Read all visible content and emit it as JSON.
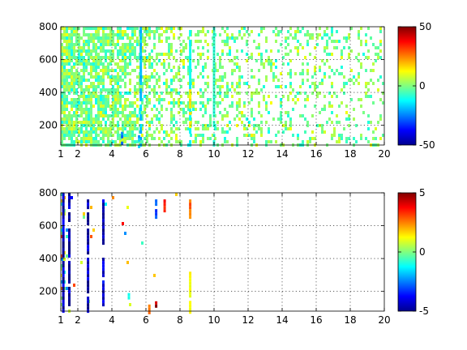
{
  "chart_data": [
    {
      "type": "heatmap",
      "title": "",
      "xlabel": "",
      "ylabel": "",
      "xlim": [
        1,
        20
      ],
      "ylim": [
        80,
        800
      ],
      "x_ticks": [
        1,
        2,
        4,
        6,
        8,
        10,
        12,
        14,
        16,
        18,
        20
      ],
      "x_tick_labels": [
        "1",
        "2",
        "4",
        "6",
        "8",
        "10",
        "12",
        "14",
        "16",
        "18",
        "20"
      ],
      "y_ticks": [
        200,
        400,
        600,
        800
      ],
      "y_tick_labels": [
        "200",
        "400",
        "600",
        "800"
      ],
      "grid": true,
      "colormap": "jet",
      "colorbar": {
        "range": [
          -50,
          50
        ],
        "ticks": [
          -50,
          0,
          50
        ],
        "tick_labels": [
          "-50",
          "0",
          "50"
        ]
      },
      "density_profile": [
        [
          1,
          0.88
        ],
        [
          2,
          0.8
        ],
        [
          3,
          0.82
        ],
        [
          4,
          0.7
        ],
        [
          5,
          0.65
        ],
        [
          6,
          0.5
        ],
        [
          7,
          0.4
        ],
        [
          8,
          0.35
        ],
        [
          10,
          0.32
        ],
        [
          12,
          0.28
        ],
        [
          14,
          0.25
        ],
        [
          16,
          0.22
        ],
        [
          18,
          0.2
        ],
        [
          20,
          0.18
        ]
      ],
      "value_spread": 14,
      "columns": [
        {
          "x": 5.7,
          "y": [
            80,
            800
          ],
          "value": -18
        },
        {
          "x": 8.6,
          "y": [
            80,
            800
          ],
          "value": -12
        },
        {
          "x": 8.6,
          "y": [
            200,
            420
          ],
          "value": 14
        },
        {
          "x": 10.0,
          "y": [
            80,
            800
          ],
          "value": -8
        },
        {
          "x": 4.6,
          "y": [
            100,
            160
          ],
          "value": -25
        },
        {
          "x": 5.6,
          "y": [
            80,
            140
          ],
          "value": -20
        }
      ]
    },
    {
      "type": "heatmap",
      "title": "",
      "xlabel": "",
      "ylabel": "",
      "xlim": [
        1,
        20
      ],
      "ylim": [
        80,
        800
      ],
      "x_ticks": [
        1,
        2,
        4,
        6,
        8,
        10,
        12,
        14,
        16,
        18,
        20
      ],
      "x_tick_labels": [
        "1",
        "2",
        "4",
        "6",
        "8",
        "10",
        "12",
        "14",
        "16",
        "18",
        "20"
      ],
      "y_ticks": [
        200,
        400,
        600,
        800
      ],
      "y_tick_labels": [
        "200",
        "400",
        "600",
        "800"
      ],
      "grid": true,
      "colormap": "jet",
      "colorbar": {
        "range": [
          -5,
          5
        ],
        "ticks": [
          -5,
          0,
          5
        ],
        "tick_labels": [
          "-5",
          "0",
          "5"
        ]
      },
      "density_profile": [
        [
          1,
          0.35
        ],
        [
          1.5,
          0.06
        ],
        [
          2,
          0.02
        ],
        [
          3,
          0.02
        ],
        [
          4,
          0.015
        ],
        [
          6,
          0.01
        ],
        [
          8,
          0.005
        ],
        [
          12,
          0.0
        ],
        [
          20,
          0.0
        ]
      ],
      "value_spread": 4.5,
      "columns": [
        {
          "x": 1.15,
          "y": [
            80,
            800
          ],
          "value": -4.5
        },
        {
          "x": 1.5,
          "y": [
            120,
            800
          ],
          "value": -4.8
        },
        {
          "x": 2.6,
          "y": [
            80,
            760
          ],
          "value": -4.6
        },
        {
          "x": 3.5,
          "y": [
            120,
            760
          ],
          "value": -4.2
        },
        {
          "x": 6.6,
          "y": [
            660,
            760
          ],
          "value": -3.0
        },
        {
          "x": 7.1,
          "y": [
            700,
            760
          ],
          "value": 3.5
        },
        {
          "x": 8.6,
          "y": [
            660,
            760
          ],
          "value": 2.6
        },
        {
          "x": 8.6,
          "y": [
            80,
            320
          ],
          "value": 1.2
        },
        {
          "x": 6.6,
          "y": [
            100,
            140
          ],
          "value": 4.5
        },
        {
          "x": 5.0,
          "y": [
            160,
            190
          ],
          "value": -1.0
        },
        {
          "x": 6.2,
          "y": [
            80,
            120
          ],
          "value": 2.5
        }
      ]
    }
  ]
}
